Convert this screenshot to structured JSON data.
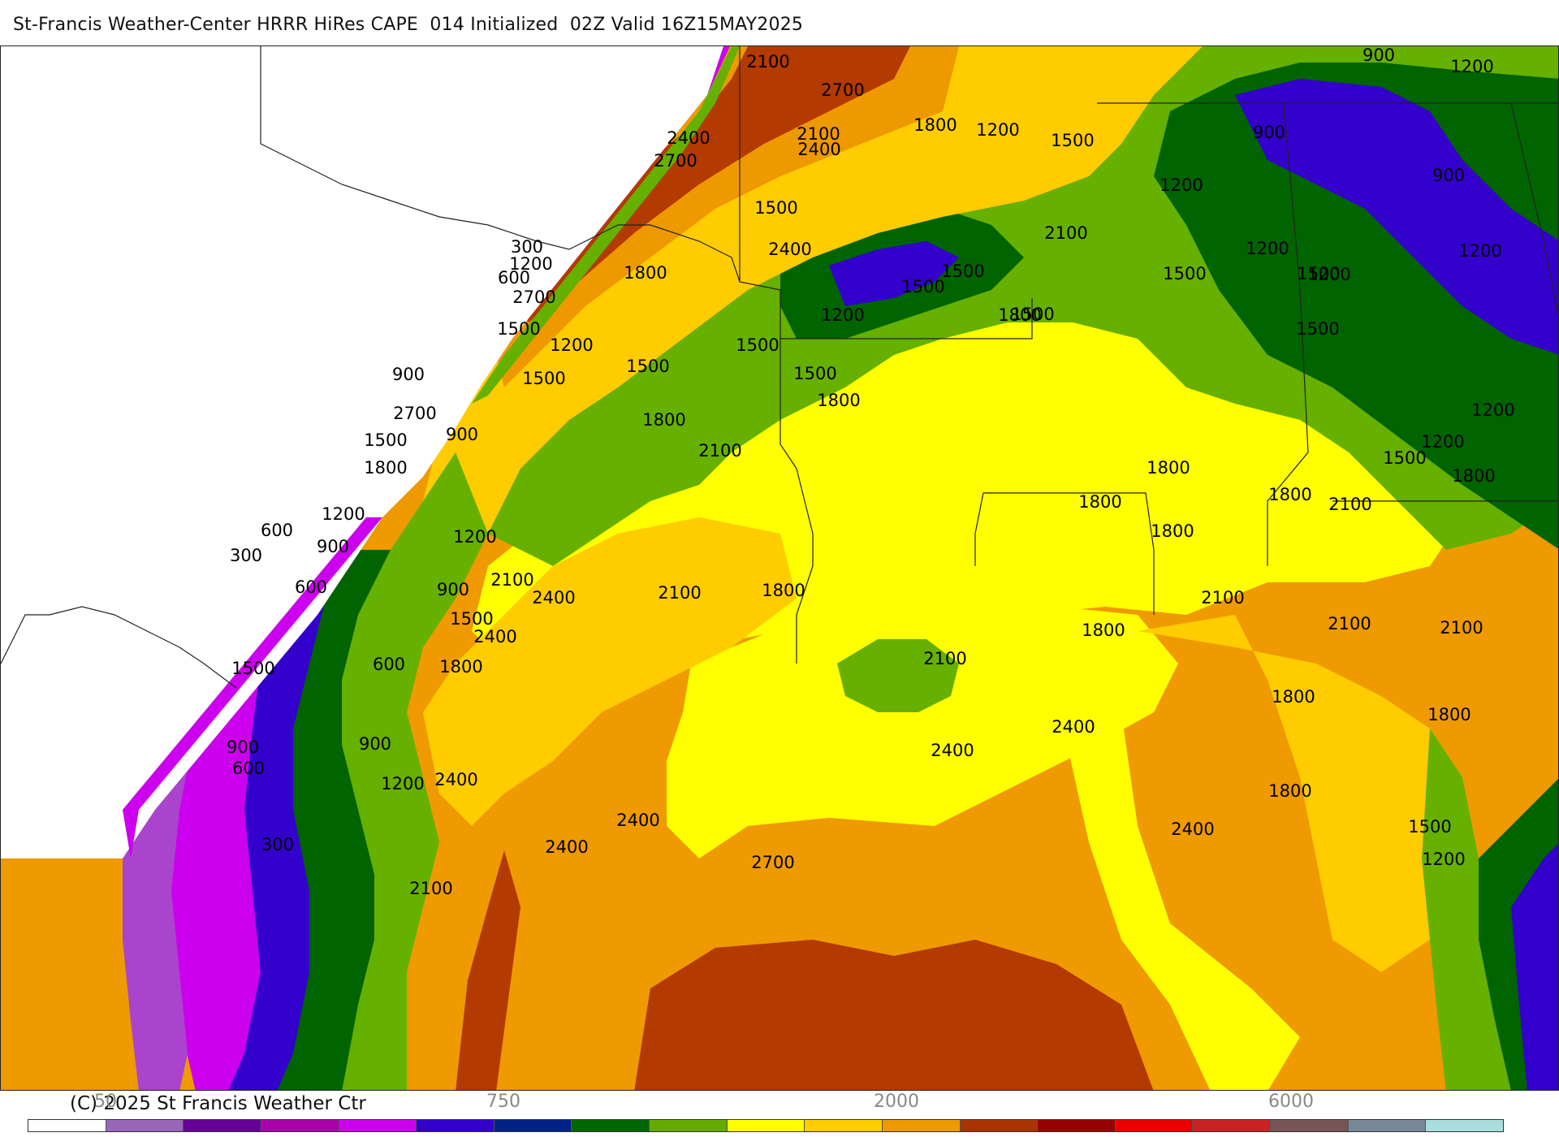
{
  "header": {
    "title": "St-Francis Weather-Center HRRR HiRes CAPE  014 Initialized  02Z Valid 16Z15MAY2025"
  },
  "map": {
    "contour_labels": [
      {
        "text": "2100",
        "id": "c1"
      },
      {
        "text": "2700",
        "id": "c2"
      },
      {
        "text": "900",
        "id": "c3"
      },
      {
        "text": "1200",
        "id": "c4"
      },
      {
        "text": "2400",
        "id": "c5"
      },
      {
        "text": "2100",
        "id": "c6"
      },
      {
        "text": "1800",
        "id": "c7"
      },
      {
        "text": "1200",
        "id": "c8"
      },
      {
        "text": "1500",
        "id": "c9"
      },
      {
        "text": "900",
        "id": "c10"
      },
      {
        "text": "2400",
        "id": "c11"
      },
      {
        "text": "2700",
        "id": "c12"
      },
      {
        "text": "1200",
        "id": "c13"
      },
      {
        "text": "900",
        "id": "c14"
      },
      {
        "text": "1500",
        "id": "c15"
      },
      {
        "text": "300",
        "id": "c16"
      },
      {
        "text": "1200",
        "id": "c17"
      },
      {
        "text": "600",
        "id": "c18"
      },
      {
        "text": "2700",
        "id": "c19"
      },
      {
        "text": "2400",
        "id": "c20"
      },
      {
        "text": "2100",
        "id": "c21"
      },
      {
        "text": "1800",
        "id": "c22"
      },
      {
        "text": "1200",
        "id": "c23"
      },
      {
        "text": "1500",
        "id": "c24"
      },
      {
        "text": "1500",
        "id": "c25"
      },
      {
        "text": "1500",
        "id": "c26"
      },
      {
        "text": "1500",
        "id": "c27"
      },
      {
        "text": "1500",
        "id": "c28"
      },
      {
        "text": "1200",
        "id": "c29"
      },
      {
        "text": "1200",
        "id": "c30"
      },
      {
        "text": "1200",
        "id": "c31"
      },
      {
        "text": "1500",
        "id": "c32"
      },
      {
        "text": "1800",
        "id": "c33"
      },
      {
        "text": "1200",
        "id": "c34"
      },
      {
        "text": "1500",
        "id": "c35"
      },
      {
        "text": "1500",
        "id": "c36"
      },
      {
        "text": "900",
        "id": "c37"
      },
      {
        "text": "1500",
        "id": "c38"
      },
      {
        "text": "1800",
        "id": "c39"
      },
      {
        "text": "1500",
        "id": "c40"
      },
      {
        "text": "2700",
        "id": "c41"
      },
      {
        "text": "1500",
        "id": "c42"
      },
      {
        "text": "900",
        "id": "c43"
      },
      {
        "text": "1500",
        "id": "c44"
      },
      {
        "text": "1800",
        "id": "c45"
      },
      {
        "text": "1800",
        "id": "c46"
      },
      {
        "text": "2100",
        "id": "c47"
      },
      {
        "text": "1800",
        "id": "c48"
      },
      {
        "text": "1200",
        "id": "c49"
      },
      {
        "text": "1500",
        "id": "c50"
      },
      {
        "text": "1200",
        "id": "c51"
      },
      {
        "text": "1800",
        "id": "c52"
      },
      {
        "text": "1800",
        "id": "c53"
      },
      {
        "text": "1800",
        "id": "c54"
      },
      {
        "text": "2100",
        "id": "c55"
      },
      {
        "text": "1800",
        "id": "c56"
      },
      {
        "text": "1200",
        "id": "c57"
      },
      {
        "text": "600",
        "id": "c58"
      },
      {
        "text": "900",
        "id": "c59"
      },
      {
        "text": "300",
        "id": "c60"
      },
      {
        "text": "1200",
        "id": "c61"
      },
      {
        "text": "600",
        "id": "c62"
      },
      {
        "text": "900",
        "id": "c63"
      },
      {
        "text": "2100",
        "id": "c64"
      },
      {
        "text": "2400",
        "id": "c65"
      },
      {
        "text": "2100",
        "id": "c66"
      },
      {
        "text": "1800",
        "id": "c67"
      },
      {
        "text": "2100",
        "id": "c68"
      },
      {
        "text": "1500",
        "id": "c69"
      },
      {
        "text": "2400",
        "id": "c70"
      },
      {
        "text": "1500",
        "id": "c71"
      },
      {
        "text": "600",
        "id": "c72"
      },
      {
        "text": "1800",
        "id": "c73"
      },
      {
        "text": "1800",
        "id": "c74"
      },
      {
        "text": "2100",
        "id": "c75"
      },
      {
        "text": "2100",
        "id": "c76"
      },
      {
        "text": "2100",
        "id": "c77"
      },
      {
        "text": "1800",
        "id": "c78"
      },
      {
        "text": "1800",
        "id": "c79"
      },
      {
        "text": "2400",
        "id": "c80"
      },
      {
        "text": "900",
        "id": "c81"
      },
      {
        "text": "600",
        "id": "c82"
      },
      {
        "text": "900",
        "id": "c83"
      },
      {
        "text": "2400",
        "id": "c84"
      },
      {
        "text": "1200",
        "id": "c85"
      },
      {
        "text": "2400",
        "id": "c86"
      },
      {
        "text": "300",
        "id": "c87"
      },
      {
        "text": "2400",
        "id": "c88"
      },
      {
        "text": "2400",
        "id": "c89"
      },
      {
        "text": "2700",
        "id": "c90"
      },
      {
        "text": "2400",
        "id": "c91"
      },
      {
        "text": "1800",
        "id": "c92"
      },
      {
        "text": "1500",
        "id": "c93"
      },
      {
        "text": "1200",
        "id": "c94"
      },
      {
        "text": "2100",
        "id": "c95"
      }
    ]
  },
  "footer": {
    "copyright": "(C) 2025 St Francis Weather Ctr",
    "tick_labels": [
      "50",
      "750",
      "2000",
      "6000"
    ],
    "colorbar_colors": [
      "#ffffff",
      "#9966bb",
      "#660099",
      "#aa00aa",
      "#cc00ee",
      "#3300cc",
      "#002288",
      "#006600",
      "#66aa00",
      "#ffff00",
      "#ffcc00",
      "#ee9900",
      "#aa3300",
      "#990000",
      "#ee0000",
      "#cc2222",
      "#775555",
      "#778899",
      "#aadddd"
    ]
  }
}
